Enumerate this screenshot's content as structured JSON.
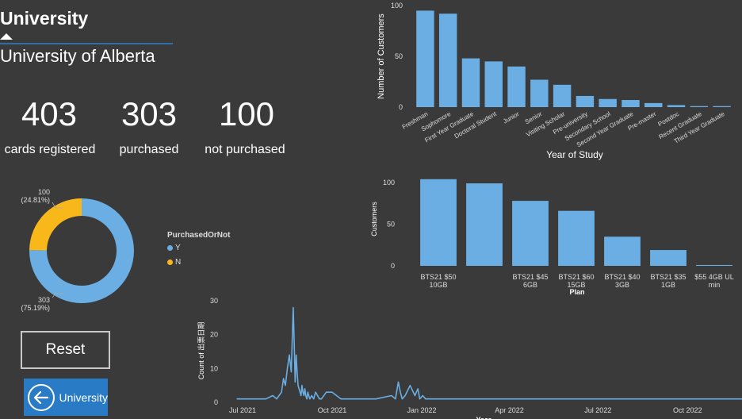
{
  "slicer": {
    "title": "University",
    "value": "University of Alberta"
  },
  "kpis": [
    {
      "value": "403",
      "label": "cards registered"
    },
    {
      "value": "303",
      "label": "purchased"
    },
    {
      "value": "100",
      "label": "not purchased"
    }
  ],
  "donut_legend": {
    "title": "PurchasedOrNot",
    "items": [
      {
        "label": "Y",
        "color": "#6aaee3"
      },
      {
        "label": "N",
        "color": "#f8b81a"
      }
    ]
  },
  "buttons": {
    "reset": "Reset",
    "university": "University"
  },
  "chart_data": [
    {
      "type": "bar",
      "id": "year-of-study",
      "ylabel": "Number of Customers",
      "xlabel": "Year of Study",
      "ylim": [
        0,
        100
      ],
      "yticks": [
        "0",
        "50",
        "100"
      ],
      "categories": [
        "Freshman",
        "Sophomore",
        "First Year Graduate",
        "Doctoral Student",
        "Junior",
        "Senior",
        "Visiting Scholar",
        "Pre-university",
        "Secondary School",
        "Second Year Graduate",
        "Pre-master",
        "Postdoc",
        "Recent Graduate",
        "Third Year Graduate"
      ],
      "values": [
        95,
        92,
        48,
        45,
        40,
        27,
        22,
        11,
        8,
        7,
        4,
        2,
        1,
        1
      ],
      "color": "#6aaee3"
    },
    {
      "type": "bar",
      "id": "plan",
      "ylabel": "Customers",
      "xlabel": "Plan",
      "ylim": [
        0,
        100
      ],
      "yticks": [
        "0",
        "50",
        "100"
      ],
      "categories": [
        [
          "BTS21 $50",
          "10GB"
        ],
        [
          ""
        ],
        [
          "BTS21 $45",
          "6GB"
        ],
        [
          "BTS21 $60",
          "15GB"
        ],
        [
          "BTS21 $40",
          "3GB"
        ],
        [
          "BTS21 $35",
          "1GB"
        ],
        [
          "$55 4GB UL",
          "min"
        ]
      ],
      "values": [
        104,
        99,
        78,
        66,
        35,
        19,
        1
      ],
      "color": "#6aaee3"
    },
    {
      "type": "pie",
      "id": "purchased-or-not",
      "labels": [
        "Y",
        "N"
      ],
      "values": [
        303,
        100
      ],
      "percent_labels": [
        "303\n(75.19%)",
        "100\n(24.81%)"
      ],
      "colors": [
        "#6aaee3",
        "#f8b81a"
      ]
    },
    {
      "type": "line",
      "id": "activation-timeline",
      "ylabel": "Count of 出票日期",
      "xlabel": "Year",
      "ylim": [
        0,
        30
      ],
      "yticks": [
        "0",
        "10",
        "20",
        "30"
      ],
      "xticks": [
        "Jul 2021",
        "Oct 2021",
        "Jan 2022",
        "Apr 2022",
        "Jul 2022",
        "Oct 2022"
      ],
      "x": [
        "2021-06-25",
        "2021-07-10",
        "2021-07-25",
        "2021-08-01",
        "2021-08-05",
        "2021-08-10",
        "2021-08-12",
        "2021-08-14",
        "2021-08-16",
        "2021-08-18",
        "2021-08-20",
        "2021-08-22",
        "2021-08-23",
        "2021-08-24",
        "2021-08-25",
        "2021-08-26",
        "2021-08-27",
        "2021-08-28",
        "2021-08-29",
        "2021-08-30",
        "2021-08-31",
        "2021-09-01",
        "2021-09-02",
        "2021-09-03",
        "2021-09-04",
        "2021-09-05",
        "2021-09-06",
        "2021-09-07",
        "2021-09-08",
        "2021-09-10",
        "2021-09-12",
        "2021-09-14",
        "2021-09-16",
        "2021-09-18",
        "2021-09-20",
        "2021-09-25",
        "2021-10-01",
        "2021-10-10",
        "2021-10-20",
        "2021-11-01",
        "2021-11-15",
        "2021-12-01",
        "2021-12-05",
        "2021-12-08",
        "2021-12-10",
        "2021-12-12",
        "2021-12-15",
        "2021-12-20",
        "2021-12-25",
        "2021-12-28",
        "2021-12-30",
        "2022-01-02",
        "2022-01-05",
        "2022-01-10",
        "2022-01-20",
        "2022-02-01",
        "2022-03-01",
        "2022-04-01",
        "2022-06-01",
        "2022-08-01",
        "2022-10-01",
        "2022-11-27"
      ],
      "y": [
        1,
        1,
        1,
        2,
        1,
        3,
        7,
        5,
        10,
        14,
        9,
        28,
        18,
        6,
        14,
        9,
        5,
        4,
        3,
        2,
        5,
        3,
        2,
        4,
        2,
        1,
        3,
        2,
        1,
        2,
        1,
        3,
        2,
        1,
        1,
        3,
        3,
        1,
        1,
        1,
        1,
        2,
        1,
        6,
        3,
        1,
        2,
        5,
        2,
        4,
        1,
        2,
        1,
        1,
        1,
        1,
        1,
        1,
        1,
        1,
        1,
        1
      ],
      "color": "#6aaee3"
    }
  ]
}
